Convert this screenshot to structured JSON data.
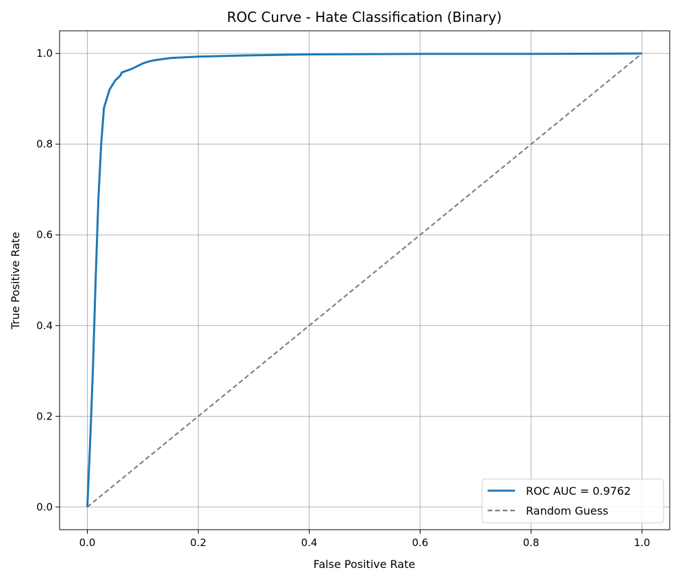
{
  "chart_data": {
    "type": "line",
    "title": "ROC Curve - Hate Classification (Binary)",
    "xlabel": "False Positive Rate",
    "ylabel": "True Positive Rate",
    "xlim": [
      -0.05,
      1.05
    ],
    "ylim": [
      -0.05,
      1.05
    ],
    "xticks": [
      0.0,
      0.2,
      0.4,
      0.6,
      0.8,
      1.0
    ],
    "yticks": [
      0.0,
      0.2,
      0.4,
      0.6,
      0.8,
      1.0
    ],
    "tick_labels_x": [
      "0.0",
      "0.2",
      "0.4",
      "0.6",
      "0.8",
      "1.0"
    ],
    "tick_labels_y": [
      "0.0",
      "0.2",
      "0.4",
      "0.6",
      "0.8",
      "1.0"
    ],
    "grid": true,
    "legend_position": "lower-right",
    "series": [
      {
        "name": "ROC AUC = 0.9762",
        "color": "#1f77b4",
        "style": "solid",
        "x": [
          0.0,
          0.005,
          0.01,
          0.015,
          0.02,
          0.025,
          0.03,
          0.035,
          0.04,
          0.05,
          0.06,
          0.062,
          0.08,
          0.09,
          0.1,
          0.11,
          0.12,
          0.15,
          0.2,
          0.3,
          0.4,
          0.6,
          0.8,
          1.0
        ],
        "y": [
          0.0,
          0.14,
          0.3,
          0.5,
          0.68,
          0.8,
          0.88,
          0.9,
          0.92,
          0.94,
          0.952,
          0.958,
          0.966,
          0.972,
          0.978,
          0.982,
          0.985,
          0.99,
          0.993,
          0.996,
          0.998,
          0.999,
          0.999,
          1.0
        ]
      },
      {
        "name": "Random Guess",
        "color": "#808080",
        "style": "dashed",
        "x": [
          0.0,
          1.0
        ],
        "y": [
          0.0,
          1.0
        ]
      }
    ]
  }
}
